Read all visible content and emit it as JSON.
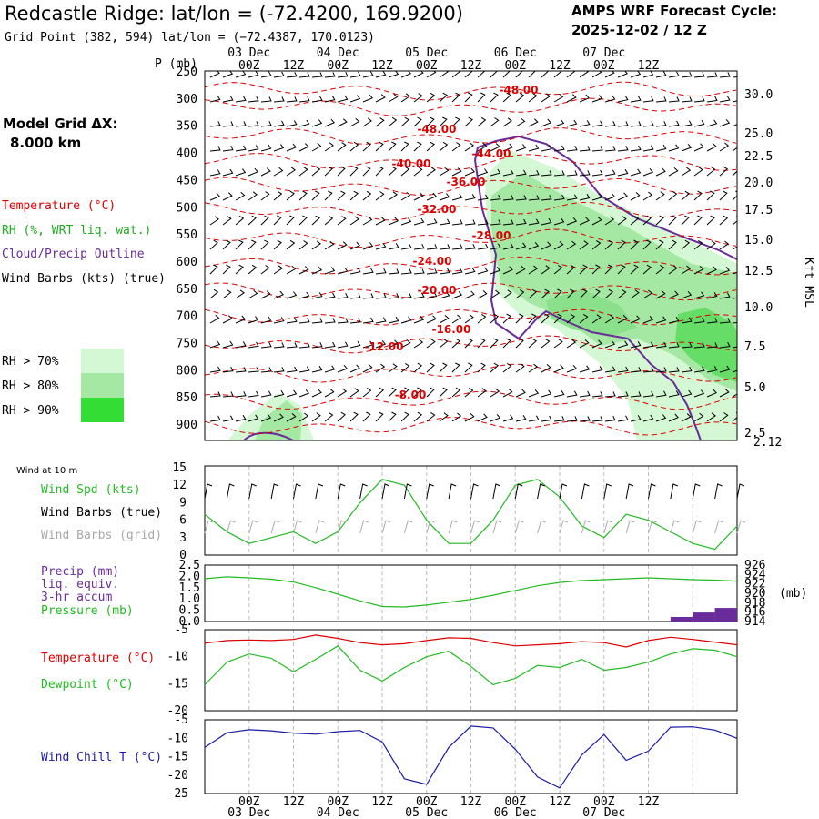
{
  "header": {
    "station_title": "Redcastle Ridge:  lat/lon = (-72.4200, 169.9200)",
    "grid_point": "Grid Point (382, 594) lat/lon = (−72.4387, 170.0123)",
    "forecast_cycle_label": "AMPS WRF Forecast Cycle:",
    "forecast_cycle_value": "2025-12-02 / 12  Z"
  },
  "time_axis": {
    "ticks": [
      "00Z",
      "12Z",
      "00Z",
      "12Z",
      "00Z",
      "12Z",
      "00Z",
      "12Z",
      "00Z",
      "12Z"
    ],
    "dates": [
      "03 Dec",
      "04 Dec",
      "05 Dec",
      "06 Dec",
      "07 Dec"
    ]
  },
  "left_legend": {
    "model_grid_label": "Model Grid ΔX:",
    "model_grid_value": "8.000 km",
    "temperature": "Temperature (°C)",
    "rh": "RH (%, WRT liq. wat.)",
    "cloud": "Cloud/Precip Outline",
    "wind_barbs": "Wind Barbs (kts) (true)",
    "rh_levels": [
      "RH > 70%",
      "RH > 80%",
      "RH > 90%"
    ]
  },
  "colors": {
    "temperature": "#dd0000",
    "rh70": "#d4f7d4",
    "rh80": "#a4e8a4",
    "rh90": "#33dd33",
    "cloud": "#6a2c9a",
    "wind_spd": "#22bb22",
    "grid_barbs": "#aaaaaa",
    "precip": "#6a2c9a",
    "pressure": "#22bb22",
    "dewpoint": "#22bb22",
    "wind_chill": "#1a1aa6"
  },
  "chart_data": [
    {
      "type": "area",
      "panel": "time-height cross section",
      "ylabel": "P (mb)",
      "right_label": "Kft MSL",
      "pressure_ticks": [
        "250",
        "300",
        "350",
        "400",
        "450",
        "500",
        "550",
        "600",
        "650",
        "700",
        "750",
        "800",
        "850",
        "900"
      ],
      "kft_ticks": [
        "30.0",
        "25.0",
        "22.5",
        "20.0",
        "17.5",
        "15.0",
        "12.5",
        "10.0",
        "7.5",
        "5.0",
        "2.5"
      ],
      "surface_height": "2.12",
      "temperature_labels": [
        "-48.00",
        "-48.00",
        "-44.00",
        "-40.00",
        "-36.00",
        "-32.00",
        "-28.00",
        "-24.00",
        "-20.00",
        "-16.00",
        "-12.00",
        "-8.00"
      ]
    },
    {
      "type": "line",
      "panel": "wind at 10 m",
      "title": "Wind at 10 m",
      "labels": [
        "Wind Spd (kts)",
        "Wind Barbs (true)",
        "Wind Barbs (grid)"
      ],
      "y_ticks": [
        "15",
        "12",
        "9",
        "6",
        "3",
        "0"
      ],
      "ylim": [
        0,
        15
      ],
      "x_hours": [
        0,
        6,
        12,
        18,
        24,
        30,
        36,
        42,
        48,
        54,
        60,
        66,
        72,
        78,
        84,
        90,
        96,
        102,
        108,
        114,
        120,
        126,
        132,
        138,
        144
      ],
      "wind_speed": [
        7,
        4,
        2,
        3,
        4,
        2,
        4,
        9,
        13,
        12,
        6,
        2,
        2,
        6,
        12,
        13,
        10,
        5,
        3,
        7,
        6,
        4,
        2,
        1,
        5
      ]
    },
    {
      "type": "line",
      "panel": "precip and pressure",
      "labels": [
        "Precip (mm)",
        "liq. equiv.",
        "3-hr accum",
        "Pressure (mb)"
      ],
      "left_ticks": [
        "2.5",
        "2.0",
        "1.5",
        "1.0",
        "0.5",
        "0.0"
      ],
      "right_ticks": [
        "926",
        "924",
        "922",
        "920",
        "918",
        "916",
        "914"
      ],
      "right_unit": "(mb)",
      "pressure_ylim": [
        914,
        926
      ],
      "x_hours": [
        0,
        6,
        12,
        18,
        24,
        30,
        36,
        42,
        48,
        54,
        60,
        66,
        72,
        78,
        84,
        90,
        96,
        102,
        108,
        114,
        120,
        126,
        132,
        138,
        144
      ],
      "pressure": [
        923.1,
        923.5,
        923.3,
        923.0,
        922.4,
        921.2,
        919.8,
        918.4,
        917.2,
        917.1,
        917.5,
        918.1,
        918.7,
        919.6,
        920.6,
        921.6,
        922.3,
        922.7,
        922.9,
        923.1,
        923.3,
        923.1,
        922.9,
        922.8,
        922.6
      ],
      "precip": [
        0,
        0,
        0,
        0,
        0,
        0,
        0,
        0,
        0,
        0,
        0,
        0,
        0,
        0,
        0,
        0,
        0,
        0,
        0,
        0,
        0,
        0,
        0.2,
        0.4,
        0.6
      ]
    },
    {
      "type": "line",
      "panel": "temperature and dewpoint",
      "labels": [
        "Temperature (°C)",
        "Dewpoint (°C)"
      ],
      "y_ticks": [
        "-5",
        "-10",
        "-15",
        "-20"
      ],
      "ylim": [
        -20,
        -5
      ],
      "x_hours": [
        0,
        6,
        12,
        18,
        24,
        30,
        36,
        42,
        48,
        54,
        60,
        66,
        72,
        78,
        84,
        90,
        96,
        102,
        108,
        114,
        120,
        126,
        132,
        138,
        144
      ],
      "temperature": [
        -7.5,
        -7.0,
        -6.9,
        -7.0,
        -6.8,
        -6.0,
        -6.6,
        -7.4,
        -7.8,
        -7.6,
        -7.0,
        -6.5,
        -6.6,
        -7.4,
        -8.0,
        -7.8,
        -7.6,
        -7.2,
        -7.4,
        -8.2,
        -7.0,
        -6.4,
        -6.8,
        -7.3,
        -7.8
      ],
      "dewpoint": [
        -15.2,
        -11.0,
        -9.5,
        -10.3,
        -12.8,
        -10.5,
        -8.0,
        -12.5,
        -14.5,
        -12.0,
        -10.0,
        -9.0,
        -11.8,
        -15.2,
        -14.0,
        -11.6,
        -12.0,
        -10.5,
        -12.5,
        -12.0,
        -11.0,
        -9.5,
        -8.5,
        -8.8,
        -10.0
      ]
    },
    {
      "type": "line",
      "panel": "wind chill",
      "labels": [
        "Wind Chill T (°C)"
      ],
      "y_ticks": [
        "-5",
        "-10",
        "-15",
        "-20",
        "-25"
      ],
      "ylim": [
        -25,
        -5
      ],
      "x_hours": [
        0,
        6,
        12,
        18,
        24,
        30,
        36,
        42,
        48,
        54,
        60,
        66,
        72,
        78,
        84,
        90,
        96,
        102,
        108,
        114,
        120,
        126,
        132,
        138,
        144
      ],
      "wind_chill": [
        -12.5,
        -8.5,
        -7.7,
        -8.0,
        -8.6,
        -8.9,
        -8.2,
        -7.9,
        -11.0,
        -21.0,
        -22.5,
        -12.5,
        -6.7,
        -7.2,
        -13.0,
        -20.5,
        -23.5,
        -14.5,
        -9.0,
        -16.0,
        -13.5,
        -7.0,
        -6.9,
        -7.8,
        -10.0
      ]
    }
  ]
}
